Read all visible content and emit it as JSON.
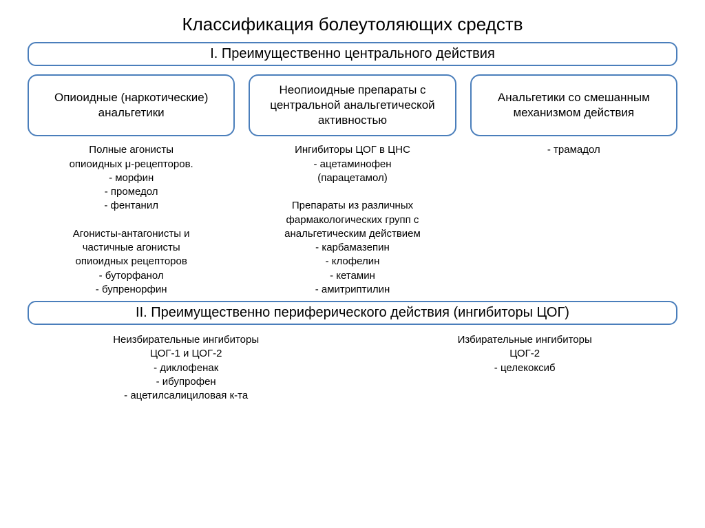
{
  "title": "Классификация болеутоляющих средств",
  "section1": {
    "header": "I. Преимущественно центрального действия",
    "boxes": [
      "Опиоидные\n(наркотические)\nанальгетики",
      "Неопиоидные препараты с\nцентральной\nанальгетической\nактивностью",
      "Анальгетики со\nсмешанным\nмеханизмом действия"
    ],
    "details": [
      "Полные агонисты\nопиоидных μ-рецепторов.\n- морфин\n- промедол\n- фентанил\n\nАгонисты-антагонисты и\nчастичные агонисты\nопиоидных рецепторов\n- буторфанол\n- бупренорфин",
      "Ингибиторы ЦОГ в ЦНС\n- ацетаминофен\n(парацетамол)\n\nПрепараты из различных\nфармакологических групп с\nанальгетическим действием\n- карбамазепин\n- клофелин\n- кетамин\n- амитриптилин",
      "- трамадол"
    ]
  },
  "section2": {
    "header": "II. Преимущественно периферического действия (ингибиторы ЦОГ)",
    "details": [
      "Неизбирательные ингибиторы\nЦОГ-1 и ЦОГ-2\n- диклофенак\n- ибупрофен\n- ацетилсалициловая к-та",
      "Избирательные ингибиторы\nЦОГ-2\n- целекоксиб"
    ]
  },
  "style": {
    "border_color": "#4a7ebb",
    "box_border_color": "#4a7ebb",
    "title_fontsize": 26,
    "header_fontsize": 20,
    "box_fontsize": 17,
    "detail_fontsize": 15,
    "border_radius": 14,
    "background_color": "#ffffff",
    "text_color": "#000000",
    "font_family": "Comic Sans MS"
  }
}
